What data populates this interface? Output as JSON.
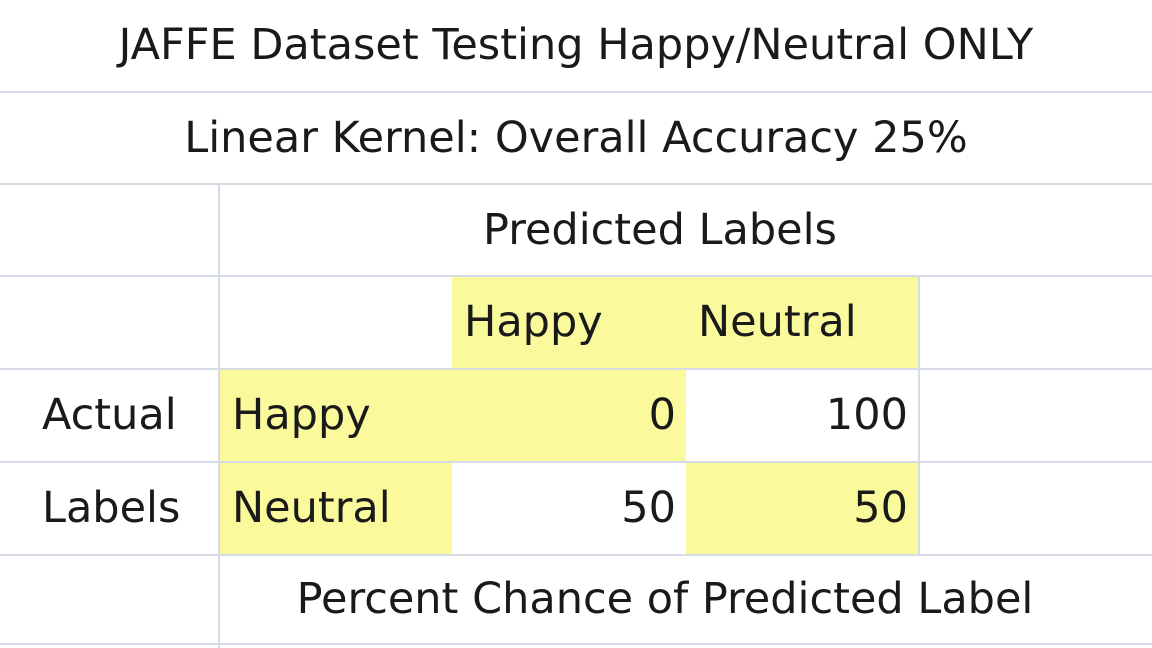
{
  "title": "JAFFE Dataset Testing Happy/Neutral ONLY",
  "subtitle": "Linear Kernel: Overall Accuracy 25%",
  "predicted_header": "Predicted Labels",
  "columns": [
    "Happy",
    "Neutral"
  ],
  "actual_label_line1": "Actual",
  "actual_label_line2": "Labels",
  "rows": [
    {
      "label": "Happy",
      "values": [
        "0",
        "100"
      ]
    },
    {
      "label": "Neutral",
      "values": [
        "50",
        "50"
      ]
    }
  ],
  "footer": "Percent Chance of Predicted Label",
  "colors": {
    "highlight": "#fafa9c",
    "gridline": "#d6dce5"
  }
}
